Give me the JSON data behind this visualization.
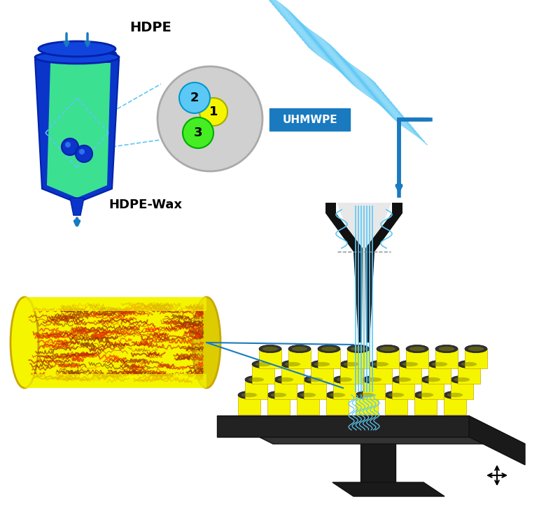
{
  "title": "",
  "bg_color": "#ffffff",
  "hdpe_label": "HDPE",
  "hdpe_wax_label": "HDPE-Wax",
  "uhmwpe_label": "UHMWPE",
  "arrow_color": "#1a7abf",
  "nozzle_black": "#1a1a1a",
  "yellow_rod": "#f5f500",
  "yellow_rod_dark": "#c8a800",
  "plate_color": "#2a2a2a",
  "plate_light": "#444444",
  "move_symbol_color": "#1a1a1a",
  "fiber_top_color": "#5bc8f5",
  "fiber_curly_color": "#5bc8f5",
  "circle1_color": "#f5f500",
  "circle2_color": "#5bc8f5",
  "circle3_color": "#44ee22",
  "label1": "1",
  "label2": "2",
  "label3": "3"
}
